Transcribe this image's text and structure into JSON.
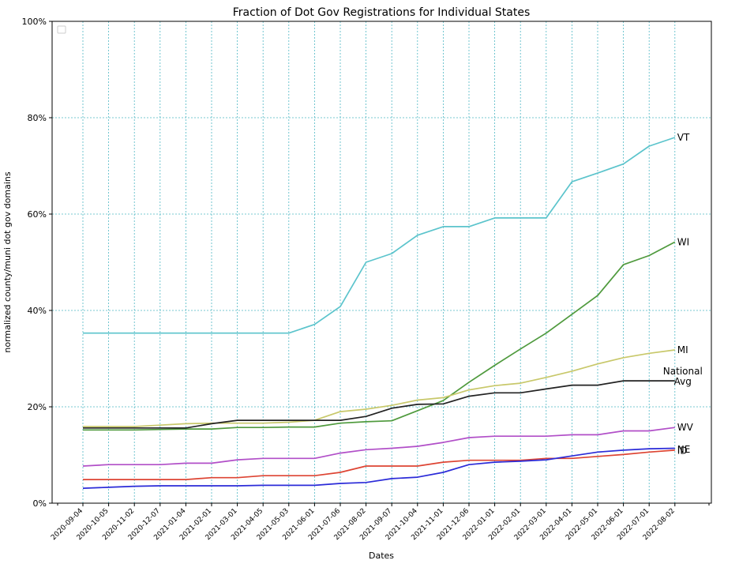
{
  "chart_data": {
    "type": "line",
    "title": "Fraction of Dot Gov Registrations for Individual States",
    "xlabel": "Dates",
    "ylabel": "normalized county/muni dot gov domains",
    "ylim": [
      0,
      100
    ],
    "yticks": [
      0,
      20,
      40,
      60,
      80,
      100
    ],
    "ytick_labels": [
      "0%",
      "20%",
      "40%",
      "60%",
      "80%",
      "100%"
    ],
    "grid": true,
    "legend": "top-left (empty)",
    "categories": [
      "2020-09-04",
      "2020-10-05",
      "2020-11-02",
      "2020-12-07",
      "2021-01-04",
      "2021-02-01",
      "2021-03-01",
      "2021-04-05",
      "2021-05-03",
      "2021-06-01",
      "2021-07-06",
      "2021-08-02",
      "2021-09-07",
      "2021-10-04",
      "2021-11-01",
      "2021-12-06",
      "2022-01-01",
      "2022-02-01",
      "2022-03-01",
      "2022-04-01",
      "2022-05-01",
      "2022-06-01",
      "2022-07-01",
      "2022-08-02"
    ],
    "series": [
      {
        "name": "VT",
        "label": "VT",
        "color": "#5bc4cc",
        "values": [
          35.3,
          35.3,
          35.3,
          35.3,
          35.3,
          35.3,
          35.3,
          35.3,
          35.3,
          37.1,
          40.8,
          50.0,
          51.8,
          55.6,
          57.4,
          57.4,
          59.2,
          59.2,
          59.2,
          66.7,
          68.5,
          70.4,
          74.1,
          75.9
        ]
      },
      {
        "name": "WI",
        "label": "WI",
        "color": "#4f9a3d",
        "values": [
          15.2,
          15.2,
          15.2,
          15.3,
          15.4,
          15.4,
          15.7,
          15.7,
          15.8,
          15.8,
          16.6,
          16.9,
          17.1,
          19.2,
          21.3,
          25.1,
          28.6,
          32.0,
          35.3,
          39.2,
          43.1,
          49.5,
          51.4,
          54.2
        ]
      },
      {
        "name": "MI",
        "label": "MI",
        "color": "#c8c86a",
        "values": [
          15.9,
          15.9,
          15.9,
          16.2,
          16.5,
          16.6,
          16.6,
          16.6,
          16.8,
          17.2,
          19.0,
          19.5,
          20.3,
          21.4,
          21.9,
          23.5,
          24.4,
          24.9,
          26.1,
          27.4,
          28.9,
          30.2,
          31.1,
          31.8
        ]
      },
      {
        "name": "National Avg",
        "label_lines": [
          "National",
          "Avg"
        ],
        "color": "#222222",
        "values": [
          15.6,
          15.6,
          15.6,
          15.6,
          15.6,
          16.5,
          17.2,
          17.2,
          17.2,
          17.2,
          17.2,
          18.0,
          19.7,
          20.5,
          20.6,
          22.2,
          22.9,
          22.9,
          23.7,
          24.5,
          24.5,
          25.4,
          25.4,
          25.4
        ]
      },
      {
        "name": "WV",
        "label": "WV",
        "color": "#b14fc8",
        "values": [
          7.7,
          8.0,
          8.0,
          8.0,
          8.3,
          8.3,
          9.0,
          9.3,
          9.3,
          9.3,
          10.4,
          11.1,
          11.4,
          11.8,
          12.6,
          13.6,
          13.9,
          13.9,
          13.9,
          14.2,
          14.2,
          15.0,
          15.0,
          15.7
        ]
      },
      {
        "name": "NE",
        "label": "NE",
        "color": "#dd4433",
        "values": [
          4.9,
          4.9,
          4.9,
          4.9,
          4.9,
          5.3,
          5.3,
          5.7,
          5.7,
          5.7,
          6.4,
          7.7,
          7.7,
          7.7,
          8.5,
          8.9,
          8.9,
          8.9,
          9.3,
          9.3,
          9.7,
          10.1,
          10.6,
          11.0
        ]
      },
      {
        "name": "ID",
        "label": "ID",
        "color": "#2b2bd8",
        "values": [
          3.1,
          3.3,
          3.5,
          3.6,
          3.6,
          3.6,
          3.6,
          3.7,
          3.7,
          3.7,
          4.1,
          4.3,
          5.1,
          5.4,
          6.4,
          8.0,
          8.5,
          8.7,
          9.0,
          9.8,
          10.6,
          11.0,
          11.3,
          11.4
        ]
      }
    ]
  }
}
